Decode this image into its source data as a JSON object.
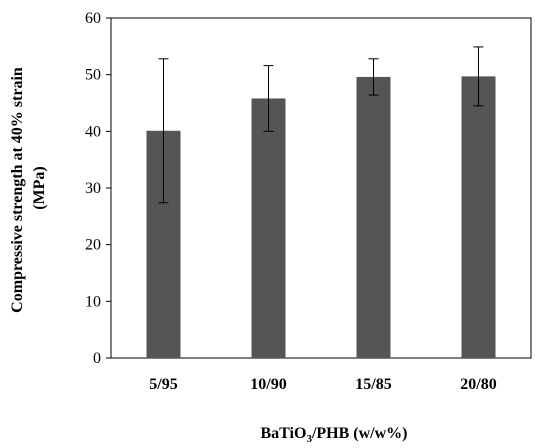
{
  "chart_data": {
    "type": "bar",
    "categories": [
      "5/95",
      "10/90",
      "15/85",
      "20/80"
    ],
    "values": [
      40.1,
      45.8,
      49.6,
      49.7
    ],
    "errors": [
      12.7,
      5.8,
      3.2,
      5.2
    ],
    "ylim": [
      0,
      60
    ],
    "yticks": [
      0,
      10,
      20,
      30,
      40,
      50,
      60
    ],
    "ylabel_line1": "Compressive strength at 40% strain",
    "ylabel_line2": "(MPa)",
    "xlabel_main": "BaTiO",
    "xlabel_sub": "3",
    "xlabel_rest": "/PHB (w/w%)",
    "grid": false,
    "bar_color": "#555555"
  }
}
